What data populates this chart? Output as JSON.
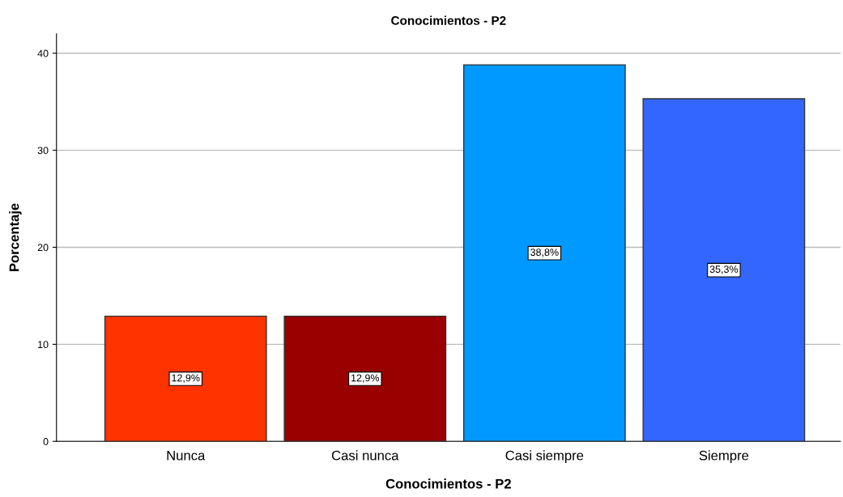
{
  "chart_data": {
    "type": "bar",
    "title": "Conocimientos - P2",
    "xlabel": "Conocimientos - P2",
    "ylabel": "Porcentaje",
    "categories": [
      "Nunca",
      "Casi nunca",
      "Casi siempre",
      "Siempre"
    ],
    "values": [
      12.9,
      12.9,
      38.8,
      35.3
    ],
    "colors": [
      "#ff3300",
      "#990000",
      "#0099ff",
      "#3366ff"
    ],
    "value_labels": [
      "12,9%",
      "12,9%",
      "38,8%",
      "35,3%"
    ],
    "ylim": [
      0,
      42
    ],
    "yticks": [
      0,
      10,
      20,
      30,
      40
    ],
    "grid": "y"
  }
}
